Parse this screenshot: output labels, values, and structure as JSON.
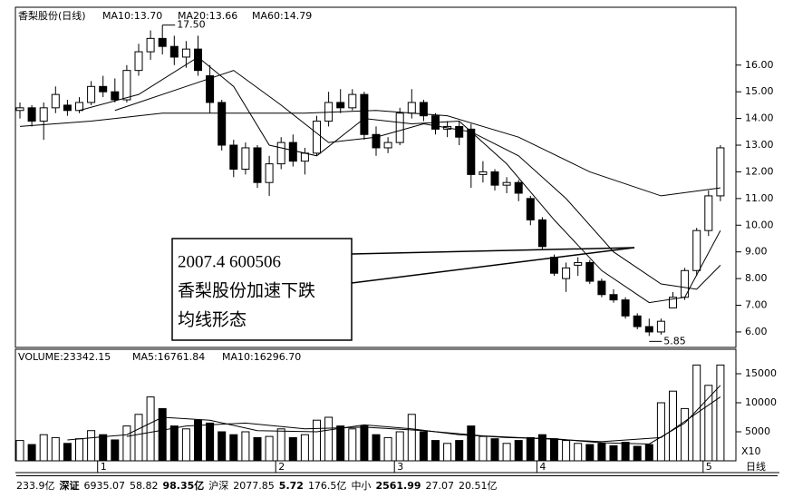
{
  "chart_data": {
    "type": "candlestick",
    "title": "香梨股份(日线)",
    "indicators": [
      "MA10:13.70",
      "MA20:13.66",
      "MA60:14.79"
    ],
    "candles": [
      [
        14.3,
        14.6,
        14.0,
        14.4
      ],
      [
        14.4,
        14.5,
        13.7,
        13.9
      ],
      [
        13.9,
        14.6,
        13.2,
        14.4
      ],
      [
        14.4,
        15.2,
        14.2,
        14.9
      ],
      [
        14.5,
        14.7,
        14.1,
        14.3
      ],
      [
        14.3,
        14.8,
        14.2,
        14.6
      ],
      [
        14.6,
        15.4,
        14.5,
        15.2
      ],
      [
        15.2,
        15.6,
        14.8,
        15.0
      ],
      [
        15.0,
        15.5,
        14.6,
        14.7
      ],
      [
        14.7,
        16.0,
        14.6,
        15.8
      ],
      [
        15.8,
        16.8,
        15.6,
        16.5
      ],
      [
        16.5,
        17.3,
        16.2,
        17.0
      ],
      [
        17.0,
        17.5,
        16.4,
        16.7
      ],
      [
        16.7,
        17.1,
        16.0,
        16.3
      ],
      [
        16.3,
        16.9,
        15.9,
        16.6
      ],
      [
        16.6,
        17.1,
        15.6,
        15.8
      ],
      [
        15.6,
        16.0,
        14.2,
        14.6
      ],
      [
        14.6,
        14.7,
        12.8,
        13.0
      ],
      [
        13.0,
        13.2,
        11.8,
        12.1
      ],
      [
        12.1,
        13.1,
        11.9,
        12.9
      ],
      [
        12.9,
        13.0,
        11.4,
        11.6
      ],
      [
        11.6,
        12.6,
        11.1,
        12.3
      ],
      [
        12.3,
        13.3,
        12.1,
        13.1
      ],
      [
        13.1,
        13.4,
        12.2,
        12.4
      ],
      [
        12.4,
        12.9,
        11.9,
        12.7
      ],
      [
        12.7,
        14.1,
        12.6,
        13.9
      ],
      [
        13.9,
        15.0,
        13.7,
        14.6
      ],
      [
        14.6,
        15.1,
        14.2,
        14.4
      ],
      [
        14.4,
        15.1,
        14.3,
        14.9
      ],
      [
        14.9,
        15.0,
        13.2,
        13.4
      ],
      [
        13.4,
        13.7,
        12.6,
        12.9
      ],
      [
        12.9,
        13.3,
        12.7,
        13.1
      ],
      [
        13.1,
        14.4,
        13.0,
        14.2
      ],
      [
        14.2,
        15.1,
        14.0,
        14.6
      ],
      [
        14.6,
        14.7,
        13.9,
        14.1
      ],
      [
        14.1,
        14.2,
        13.4,
        13.6
      ],
      [
        13.6,
        13.9,
        13.3,
        13.7
      ],
      [
        13.7,
        13.9,
        13.0,
        13.3
      ],
      [
        13.6,
        13.8,
        11.4,
        11.9
      ],
      [
        11.9,
        12.4,
        11.6,
        12.0
      ],
      [
        12.0,
        12.1,
        11.3,
        11.5
      ],
      [
        11.5,
        11.8,
        11.2,
        11.6
      ],
      [
        11.6,
        11.7,
        10.9,
        11.2
      ],
      [
        11.0,
        11.1,
        10.0,
        10.2
      ],
      [
        10.2,
        10.3,
        9.1,
        9.2
      ],
      [
        8.8,
        8.9,
        8.1,
        8.2
      ],
      [
        8.0,
        8.6,
        7.5,
        8.4
      ],
      [
        8.5,
        8.8,
        8.1,
        8.6
      ],
      [
        8.6,
        8.7,
        7.8,
        7.9
      ],
      [
        7.9,
        8.0,
        7.3,
        7.4
      ],
      [
        7.4,
        7.6,
        7.1,
        7.2
      ],
      [
        7.2,
        7.3,
        6.5,
        6.6
      ],
      [
        6.6,
        6.7,
        6.1,
        6.2
      ],
      [
        6.2,
        6.5,
        5.85,
        6.0
      ],
      [
        6.0,
        6.5,
        5.9,
        6.4
      ],
      [
        6.9,
        7.5,
        6.9,
        7.3
      ],
      [
        7.3,
        8.4,
        7.2,
        8.3
      ],
      [
        8.3,
        9.9,
        8.1,
        9.8
      ],
      [
        9.8,
        11.3,
        9.6,
        11.1
      ],
      [
        11.1,
        13.0,
        10.9,
        12.9
      ]
    ],
    "ylim": [
      5.42,
      18.1
    ],
    "yticks": [
      {
        "value": 6,
        "label": "6.00"
      },
      {
        "value": 7,
        "label": "7.00"
      },
      {
        "value": 8,
        "label": "8.00"
      },
      {
        "value": 9,
        "label": "9.00"
      },
      {
        "value": 10,
        "label": "10.00"
      },
      {
        "value": 11,
        "label": "11.00"
      },
      {
        "value": 12,
        "label": "12.00"
      },
      {
        "value": 13,
        "label": "13.00"
      },
      {
        "value": 14,
        "label": "14.00"
      },
      {
        "value": 15,
        "label": "15.00"
      },
      {
        "value": 16,
        "label": "16.00"
      }
    ],
    "ma_lines": [
      {
        "color": "#000000",
        "x": [
          5,
          10,
          15,
          18,
          21,
          25,
          29,
          33,
          37,
          41,
          45,
          49,
          53,
          56,
          59
        ],
        "values": [
          14.3,
          14.9,
          16.3,
          15.2,
          13.0,
          12.6,
          14.0,
          13.8,
          13.9,
          12.3,
          10.2,
          8.3,
          7.1,
          7.3,
          9.8
        ]
      },
      {
        "color": "#000000",
        "x": [
          8,
          14,
          18,
          22,
          26,
          30,
          34,
          38,
          42,
          46,
          50,
          54,
          57,
          59
        ],
        "values": [
          14.3,
          15.2,
          15.8,
          14.5,
          13.1,
          13.3,
          13.8,
          13.5,
          12.6,
          11.0,
          9.0,
          7.8,
          7.6,
          8.5
        ]
      },
      {
        "color": "#000000",
        "x": [
          0,
          6,
          12,
          18,
          24,
          30,
          36,
          42,
          48,
          54,
          59
        ],
        "values": [
          13.7,
          13.9,
          14.2,
          14.2,
          14.2,
          14.3,
          14.1,
          13.3,
          12.0,
          11.1,
          11.4
        ]
      }
    ],
    "high_label": {
      "value": 17.5,
      "label": "17.50"
    },
    "low_label": {
      "value": 5.85,
      "label": "5.85"
    },
    "note": [
      "2007.4   600506",
      "香梨股份加速下跌",
      "均线形态"
    ],
    "volume": {
      "header": "VOLUME:23342.15",
      "indicators": [
        "MA5:16761.84",
        "MA10:16296.70"
      ],
      "unit": "X10",
      "values": [
        3500,
        2800,
        4500,
        4000,
        3000,
        3800,
        5200,
        4500,
        3600,
        6000,
        8000,
        11000,
        9000,
        6000,
        5500,
        7000,
        6500,
        5000,
        4500,
        5000,
        4000,
        4200,
        5500,
        4000,
        4500,
        7000,
        7500,
        6000,
        5500,
        6000,
        4500,
        4000,
        5000,
        8000,
        5000,
        3500,
        3000,
        3500,
        6000,
        4200,
        3800,
        3000,
        3500,
        4000,
        4500,
        3800,
        3500,
        3000,
        2800,
        3000,
        2600,
        3200,
        2500,
        2800,
        10000,
        12000,
        9000,
        16500,
        13000,
        16500
      ],
      "ylim": [
        0,
        18750
      ],
      "yticks": [
        5000,
        10000,
        15000
      ],
      "ma_lines": [
        {
          "color": "#000000",
          "x": [
            4,
            9,
            12,
            16,
            20,
            25,
            29,
            33,
            37,
            41,
            45,
            49,
            53,
            56,
            59
          ],
          "values": [
            3600,
            4500,
            7500,
            7000,
            5200,
            5000,
            6200,
            5500,
            4500,
            4000,
            3800,
            3100,
            2900,
            6500,
            13000
          ]
        },
        {
          "color": "#000000",
          "x": [
            9,
            14,
            19,
            24,
            29,
            34,
            39,
            44,
            49,
            54,
            59
          ],
          "values": [
            4200,
            6000,
            6500,
            5500,
            5800,
            5200,
            4300,
            3800,
            3300,
            4000,
            11000
          ]
        }
      ]
    },
    "xticks": [
      {
        "value": 7,
        "label": "1"
      },
      {
        "value": 22,
        "label": "2"
      },
      {
        "value": 32,
        "label": "3"
      },
      {
        "value": 44,
        "label": "4"
      },
      {
        "value": 58,
        "label": "5"
      }
    ],
    "period": "日线",
    "status": [
      "233.9亿",
      "深证",
      "6935.07",
      "58.82",
      "98.35亿",
      "沪深",
      "2077.85",
      "5.72",
      "176.5亿",
      "中小",
      "2561.99",
      "27.07",
      "20.51亿"
    ]
  }
}
